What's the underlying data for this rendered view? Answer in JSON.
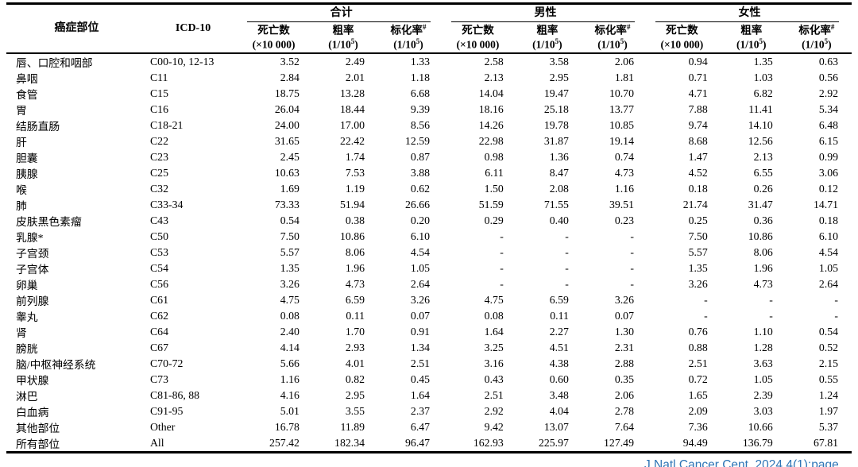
{
  "table": {
    "col_site": "癌症部位",
    "col_icd": "ICD-10",
    "groups": [
      {
        "key": "total",
        "label": "合计"
      },
      {
        "key": "male",
        "label": "男性"
      },
      {
        "key": "female",
        "label": "女性"
      }
    ],
    "subheaders": [
      {
        "key": "deaths",
        "label": "死亡数",
        "label_sup": "",
        "unit_prefix": "(×10 000)",
        "unit_sup": "",
        "unit_suffix": ""
      },
      {
        "key": "crude-rate",
        "label": "粗率",
        "label_sup": "",
        "unit_prefix": "(1/10",
        "unit_sup": "5",
        "unit_suffix": ")"
      },
      {
        "key": "std-rate",
        "label": "标化率",
        "label_sup": "#",
        "unit_prefix": "(1/10",
        "unit_sup": "5",
        "unit_suffix": ")"
      }
    ],
    "rows": [
      {
        "site": "唇、口腔和咽部",
        "icd": "C00-10, 12-13",
        "values": [
          "3.52",
          "2.49",
          "1.33",
          "2.58",
          "3.58",
          "2.06",
          "0.94",
          "1.35",
          "0.63"
        ]
      },
      {
        "site": "鼻咽",
        "icd": "C11",
        "values": [
          "2.84",
          "2.01",
          "1.18",
          "2.13",
          "2.95",
          "1.81",
          "0.71",
          "1.03",
          "0.56"
        ]
      },
      {
        "site": "食管",
        "icd": "C15",
        "values": [
          "18.75",
          "13.28",
          "6.68",
          "14.04",
          "19.47",
          "10.70",
          "4.71",
          "6.82",
          "2.92"
        ]
      },
      {
        "site": "胃",
        "icd": "C16",
        "values": [
          "26.04",
          "18.44",
          "9.39",
          "18.16",
          "25.18",
          "13.77",
          "7.88",
          "11.41",
          "5.34"
        ]
      },
      {
        "site": "结肠直肠",
        "icd": "C18-21",
        "values": [
          "24.00",
          "17.00",
          "8.56",
          "14.26",
          "19.78",
          "10.85",
          "9.74",
          "14.10",
          "6.48"
        ]
      },
      {
        "site": "肝",
        "icd": "C22",
        "values": [
          "31.65",
          "22.42",
          "12.59",
          "22.98",
          "31.87",
          "19.14",
          "8.68",
          "12.56",
          "6.15"
        ]
      },
      {
        "site": "胆囊",
        "icd": "C23",
        "values": [
          "2.45",
          "1.74",
          "0.87",
          "0.98",
          "1.36",
          "0.74",
          "1.47",
          "2.13",
          "0.99"
        ]
      },
      {
        "site": "胰腺",
        "icd": "C25",
        "values": [
          "10.63",
          "7.53",
          "3.88",
          "6.11",
          "8.47",
          "4.73",
          "4.52",
          "6.55",
          "3.06"
        ]
      },
      {
        "site": "喉",
        "icd": "C32",
        "values": [
          "1.69",
          "1.19",
          "0.62",
          "1.50",
          "2.08",
          "1.16",
          "0.18",
          "0.26",
          "0.12"
        ]
      },
      {
        "site": "肺",
        "icd": "C33-34",
        "values": [
          "73.33",
          "51.94",
          "26.66",
          "51.59",
          "71.55",
          "39.51",
          "21.74",
          "31.47",
          "14.71"
        ]
      },
      {
        "site": "皮肤黑色素瘤",
        "icd": "C43",
        "values": [
          "0.54",
          "0.38",
          "0.20",
          "0.29",
          "0.40",
          "0.23",
          "0.25",
          "0.36",
          "0.18"
        ]
      },
      {
        "site": "乳腺*",
        "icd": "C50",
        "values": [
          "7.50",
          "10.86",
          "6.10",
          "-",
          "-",
          "-",
          "7.50",
          "10.86",
          "6.10"
        ]
      },
      {
        "site": "子宫颈",
        "icd": "C53",
        "values": [
          "5.57",
          "8.06",
          "4.54",
          "-",
          "-",
          "-",
          "5.57",
          "8.06",
          "4.54"
        ]
      },
      {
        "site": "子宫体",
        "icd": "C54",
        "values": [
          "1.35",
          "1.96",
          "1.05",
          "-",
          "-",
          "-",
          "1.35",
          "1.96",
          "1.05"
        ]
      },
      {
        "site": "卵巢",
        "icd": "C56",
        "values": [
          "3.26",
          "4.73",
          "2.64",
          "-",
          "-",
          "-",
          "3.26",
          "4.73",
          "2.64"
        ]
      },
      {
        "site": "前列腺",
        "icd": "C61",
        "values": [
          "4.75",
          "6.59",
          "3.26",
          "4.75",
          "6.59",
          "3.26",
          "-",
          "-",
          "-"
        ]
      },
      {
        "site": "睾丸",
        "icd": "C62",
        "values": [
          "0.08",
          "0.11",
          "0.07",
          "0.08",
          "0.11",
          "0.07",
          "-",
          "-",
          "-"
        ]
      },
      {
        "site": "肾",
        "icd": "C64",
        "values": [
          "2.40",
          "1.70",
          "0.91",
          "1.64",
          "2.27",
          "1.30",
          "0.76",
          "1.10",
          "0.54"
        ]
      },
      {
        "site": "膀胱",
        "icd": "C67",
        "values": [
          "4.14",
          "2.93",
          "1.34",
          "3.25",
          "4.51",
          "2.31",
          "0.88",
          "1.28",
          "0.52"
        ]
      },
      {
        "site": "脑/中枢神经系统",
        "icd": "C70-72",
        "values": [
          "5.66",
          "4.01",
          "2.51",
          "3.16",
          "4.38",
          "2.88",
          "2.51",
          "3.63",
          "2.15"
        ]
      },
      {
        "site": "甲状腺",
        "icd": "C73",
        "values": [
          "1.16",
          "0.82",
          "0.45",
          "0.43",
          "0.60",
          "0.35",
          "0.72",
          "1.05",
          "0.55"
        ]
      },
      {
        "site": "淋巴",
        "icd": "C81-86, 88",
        "values": [
          "4.16",
          "2.95",
          "1.64",
          "2.51",
          "3.48",
          "2.06",
          "1.65",
          "2.39",
          "1.24"
        ]
      },
      {
        "site": "白血病",
        "icd": "C91-95",
        "values": [
          "5.01",
          "3.55",
          "2.37",
          "2.92",
          "4.04",
          "2.78",
          "2.09",
          "3.03",
          "1.97"
        ]
      },
      {
        "site": "其他部位",
        "icd": "Other",
        "values": [
          "16.78",
          "11.89",
          "6.47",
          "9.42",
          "13.07",
          "7.64",
          "7.36",
          "10.66",
          "5.37"
        ]
      },
      {
        "site": "所有部位",
        "icd": "All",
        "values": [
          "257.42",
          "182.34",
          "96.47",
          "162.93",
          "225.97",
          "127.49",
          "94.49",
          "136.79",
          "67.81"
        ]
      }
    ]
  },
  "footer": {
    "citation": "J Natl Cancer Cent. 2024,4(1):page.",
    "citation_color": "#2E75B6"
  }
}
